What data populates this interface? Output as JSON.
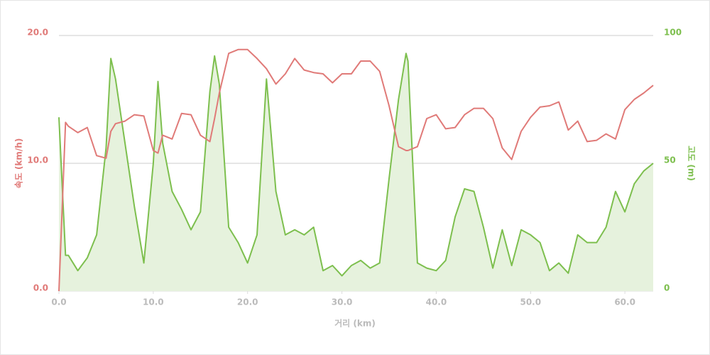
{
  "chart_data": {
    "type": "line",
    "xlabel": "거리 (km)",
    "ylabel": "속도 (km/h)",
    "y2label": "고도 (m)",
    "x": [
      0,
      0.7,
      1,
      2,
      3,
      4,
      5,
      5.5,
      6,
      7,
      8,
      9,
      10,
      10.5,
      11,
      12,
      13,
      14,
      15,
      16,
      16.5,
      17,
      18,
      19,
      20,
      21,
      22,
      23,
      24,
      25,
      26,
      27,
      28,
      29,
      30,
      31,
      32,
      33,
      34,
      35,
      36,
      36.8,
      37,
      38,
      39,
      40,
      41,
      42,
      43,
      44,
      45,
      46,
      47,
      48,
      49,
      50,
      51,
      52,
      53,
      54,
      55,
      56,
      57,
      58,
      59,
      60,
      61,
      62,
      63
    ],
    "series": [
      {
        "name": "속도",
        "color": "#e07a78",
        "values": [
          0,
          13.2,
          12.9,
          12.4,
          12.8,
          10.6,
          10.4,
          12.5,
          13.1,
          13.3,
          13.8,
          13.7,
          11,
          10.8,
          12.2,
          11.9,
          13.9,
          13.8,
          12.2,
          11.7,
          13.5,
          15.5,
          18.6,
          18.9,
          18.9,
          18.2,
          17.4,
          16.2,
          17,
          18.2,
          17.3,
          17.1,
          17,
          16.3,
          17,
          17,
          18,
          18,
          17.2,
          14.5,
          11.3,
          11,
          11,
          11.3,
          13.5,
          13.8,
          12.7,
          12.8,
          13.8,
          14.3,
          14.3,
          13.5,
          11.2,
          10.3,
          12.5,
          13.6,
          14.4,
          14.5,
          14.8,
          12.6,
          13.3,
          11.7,
          11.8,
          12.3,
          11.9,
          14.2,
          15,
          15.5,
          16.1
        ]
      },
      {
        "name": "고도",
        "color": "#7dbf4e",
        "fill": "#e6f2dd",
        "axis": "y2",
        "values": [
          68,
          14,
          14,
          8,
          13,
          22,
          56,
          91,
          83,
          58,
          33,
          11,
          50,
          82,
          58,
          39,
          32,
          24,
          31,
          78,
          92,
          81,
          25,
          19,
          11,
          22,
          83,
          39,
          22,
          24,
          22,
          25,
          8,
          10,
          6,
          10,
          12,
          9,
          11,
          44,
          75,
          93,
          90,
          11,
          9,
          8,
          12,
          29,
          40,
          39,
          25,
          9,
          24,
          10,
          24,
          22,
          19,
          8,
          11,
          7,
          22,
          19,
          19,
          25,
          39,
          31,
          42,
          47,
          50
        ]
      }
    ],
    "xlim": [
      0,
      63
    ],
    "xticks": [
      {
        "value": 0,
        "label": "0.0"
      },
      {
        "value": 10,
        "label": "10.0"
      },
      {
        "value": 20,
        "label": "20.0"
      },
      {
        "value": 30,
        "label": "30.0"
      },
      {
        "value": 40,
        "label": "40.0"
      },
      {
        "value": 50,
        "label": "50.0"
      },
      {
        "value": 60,
        "label": "60.0"
      }
    ],
    "ylim": [
      0,
      20
    ],
    "yticks": [
      {
        "value": 0,
        "label": "0.0"
      },
      {
        "value": 10,
        "label": "10.0"
      },
      {
        "value": 20,
        "label": "20.0"
      }
    ],
    "y2lim": [
      0,
      100
    ],
    "y2ticks": [
      0,
      50,
      100
    ],
    "grid": true
  }
}
